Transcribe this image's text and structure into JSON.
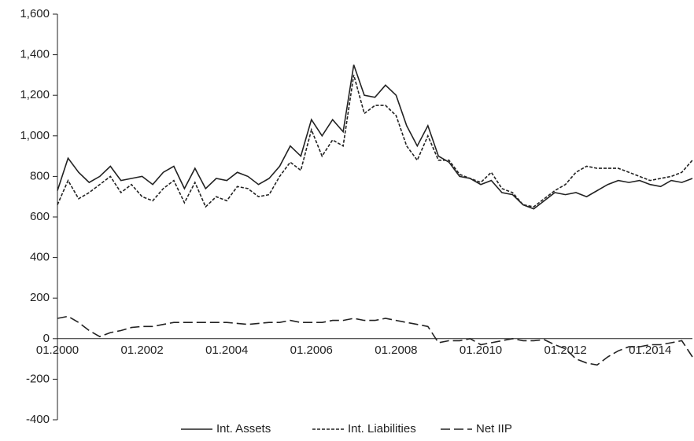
{
  "chart_data": {
    "type": "line",
    "categories": [
      "01.2000",
      null,
      null,
      null,
      null,
      null,
      null,
      null,
      "01.2002",
      null,
      null,
      null,
      null,
      null,
      null,
      null,
      "01.2004",
      null,
      null,
      null,
      null,
      null,
      null,
      null,
      "01.2006",
      null,
      null,
      null,
      null,
      null,
      null,
      null,
      "01.2008",
      null,
      null,
      null,
      null,
      null,
      null,
      null,
      "01.2010",
      null,
      null,
      null,
      null,
      null,
      null,
      null,
      "01.2012",
      null,
      null,
      null,
      null,
      null,
      null,
      null,
      "01.2014",
      null,
      null,
      null,
      null
    ],
    "series": [
      {
        "name": "Int. Assets",
        "color": "#222222",
        "dash": "solid",
        "values": [
          730,
          890,
          820,
          770,
          800,
          850,
          780,
          790,
          800,
          760,
          820,
          850,
          740,
          840,
          740,
          790,
          780,
          820,
          800,
          760,
          790,
          850,
          950,
          900,
          1080,
          1000,
          1080,
          1020,
          1350,
          1200,
          1190,
          1250,
          1200,
          1050,
          950,
          1050,
          900,
          870,
          800,
          790,
          760,
          780,
          720,
          710,
          660,
          640,
          680,
          720,
          710,
          720,
          700,
          730,
          760,
          780,
          770,
          780,
          760,
          750,
          780,
          770,
          790
        ]
      },
      {
        "name": "Int. Liabilities",
        "color": "#222222",
        "dash": "short",
        "values": [
          660,
          780,
          690,
          720,
          760,
          800,
          720,
          760,
          700,
          680,
          740,
          780,
          670,
          770,
          650,
          700,
          680,
          750,
          740,
          700,
          710,
          800,
          870,
          830,
          1030,
          900,
          980,
          950,
          1300,
          1110,
          1150,
          1150,
          1100,
          950,
          880,
          1000,
          880,
          880,
          810,
          790,
          770,
          820,
          740,
          720,
          660,
          650,
          690,
          730,
          760,
          820,
          850,
          840,
          840,
          840,
          820,
          800,
          780,
          790,
          800,
          820,
          880
        ]
      },
      {
        "name": "Net IIP",
        "color": "#222222",
        "dash": "long",
        "values": [
          100,
          110,
          80,
          40,
          10,
          30,
          40,
          55,
          60,
          60,
          70,
          80,
          80,
          80,
          80,
          80,
          80,
          75,
          70,
          75,
          80,
          80,
          90,
          80,
          80,
          80,
          90,
          90,
          100,
          90,
          90,
          100,
          90,
          80,
          70,
          60,
          -20,
          -10,
          -10,
          0,
          -30,
          -20,
          -10,
          0,
          -10,
          -10,
          -5,
          -30,
          -50,
          -100,
          -120,
          -130,
          -90,
          -60,
          -40,
          -40,
          -30,
          -30,
          -20,
          -10,
          -90
        ]
      }
    ],
    "ylim": [
      -400,
      1600
    ],
    "yticks": [
      -400,
      -200,
      0,
      200,
      400,
      600,
      800,
      {
        "value": 1000,
        "label": "1,000"
      },
      {
        "value": 1200,
        "label": "1,200"
      },
      {
        "value": 1400,
        "label": "1,400"
      },
      {
        "value": 1600,
        "label": "1,600"
      }
    ],
    "legend": "bottom"
  }
}
